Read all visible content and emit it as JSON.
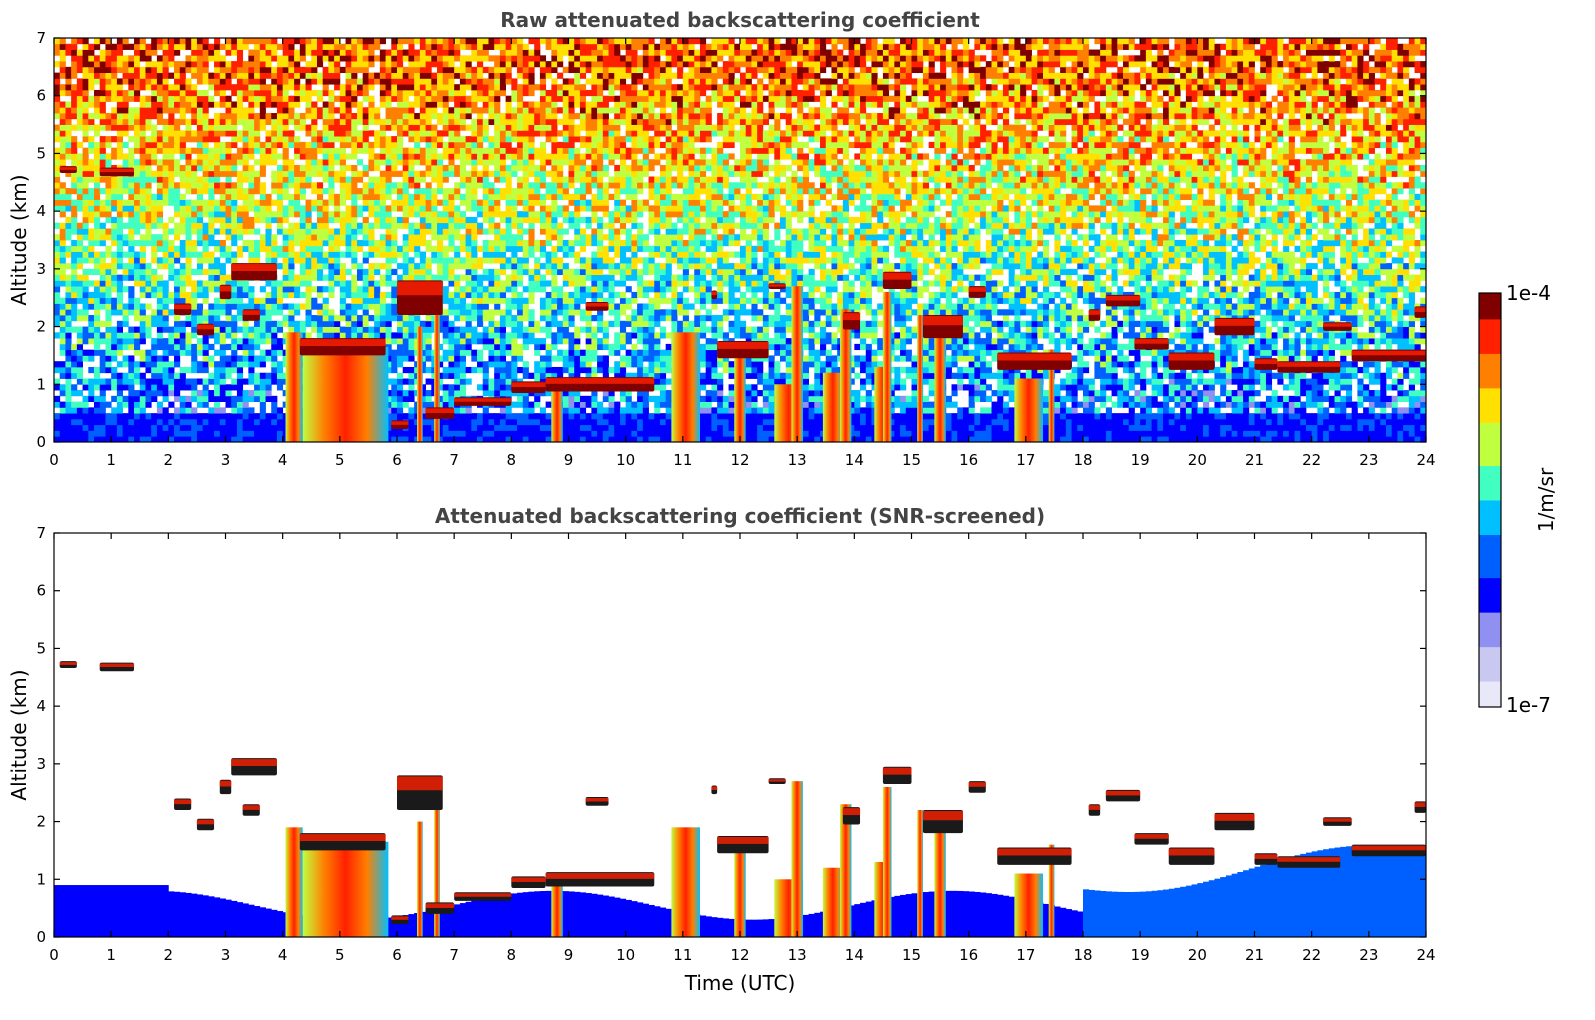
{
  "chart_data": [
    {
      "type": "heatmap",
      "title": "Raw attenuated backscattering coefficient",
      "xlabel": "",
      "ylabel": "Altitude (km)",
      "xlim": [
        0,
        24
      ],
      "ylim": [
        0,
        7
      ],
      "x_ticks": [
        "0",
        "1",
        "2",
        "3",
        "4",
        "5",
        "6",
        "7",
        "8",
        "9",
        "10",
        "11",
        "12",
        "13",
        "14",
        "15",
        "16",
        "17",
        "18",
        "19",
        "20",
        "21",
        "22",
        "23",
        "24"
      ],
      "y_ticks": [
        "0",
        "1",
        "2",
        "3",
        "4",
        "5",
        "6",
        "7"
      ],
      "screened": false,
      "cloud_layers": [
        {
          "x0": 0.1,
          "x1": 0.4,
          "alt": 4.72,
          "thick": 0.12
        },
        {
          "x0": 0.8,
          "x1": 1.4,
          "alt": 4.68,
          "thick": 0.15
        },
        {
          "x0": 2.1,
          "x1": 2.4,
          "alt": 2.3,
          "thick": 0.2
        },
        {
          "x0": 2.5,
          "x1": 2.8,
          "alt": 1.95,
          "thick": 0.2
        },
        {
          "x0": 2.9,
          "x1": 3.1,
          "alt": 2.6,
          "thick": 0.25
        },
        {
          "x0": 3.1,
          "x1": 3.9,
          "alt": 2.95,
          "thick": 0.3
        },
        {
          "x0": 3.3,
          "x1": 3.6,
          "alt": 2.2,
          "thick": 0.2
        },
        {
          "x0": 4.3,
          "x1": 5.8,
          "alt": 1.65,
          "thick": 0.3
        },
        {
          "x0": 5.9,
          "x1": 6.2,
          "alt": 0.3,
          "thick": 0.15
        },
        {
          "x0": 6.0,
          "x1": 6.8,
          "alt": 2.5,
          "thick": 0.6
        },
        {
          "x0": 6.5,
          "x1": 7.0,
          "alt": 0.5,
          "thick": 0.2
        },
        {
          "x0": 7.0,
          "x1": 8.0,
          "alt": 0.7,
          "thick": 0.15
        },
        {
          "x0": 8.0,
          "x1": 8.6,
          "alt": 0.95,
          "thick": 0.2
        },
        {
          "x0": 8.6,
          "x1": 10.5,
          "alt": 1.0,
          "thick": 0.25
        },
        {
          "x0": 9.3,
          "x1": 9.7,
          "alt": 2.35,
          "thick": 0.15
        },
        {
          "x0": 11.5,
          "x1": 11.6,
          "alt": 2.55,
          "thick": 0.15
        },
        {
          "x0": 11.6,
          "x1": 12.5,
          "alt": 1.6,
          "thick": 0.3
        },
        {
          "x0": 12.5,
          "x1": 12.8,
          "alt": 2.7,
          "thick": 0.1
        },
        {
          "x0": 13.8,
          "x1": 14.1,
          "alt": 2.1,
          "thick": 0.3
        },
        {
          "x0": 14.5,
          "x1": 15.0,
          "alt": 2.8,
          "thick": 0.3
        },
        {
          "x0": 15.2,
          "x1": 15.9,
          "alt": 2.0,
          "thick": 0.4
        },
        {
          "x0": 16.0,
          "x1": 16.3,
          "alt": 2.6,
          "thick": 0.2
        },
        {
          "x0": 16.5,
          "x1": 17.8,
          "alt": 1.4,
          "thick": 0.3
        },
        {
          "x0": 18.1,
          "x1": 18.3,
          "alt": 2.2,
          "thick": 0.2
        },
        {
          "x0": 18.4,
          "x1": 19.0,
          "alt": 2.45,
          "thick": 0.2
        },
        {
          "x0": 18.9,
          "x1": 19.5,
          "alt": 1.7,
          "thick": 0.2
        },
        {
          "x0": 19.5,
          "x1": 20.3,
          "alt": 1.4,
          "thick": 0.3
        },
        {
          "x0": 20.3,
          "x1": 21.0,
          "alt": 2.0,
          "thick": 0.3
        },
        {
          "x0": 21.0,
          "x1": 21.4,
          "alt": 1.35,
          "thick": 0.2
        },
        {
          "x0": 21.4,
          "x1": 22.5,
          "alt": 1.3,
          "thick": 0.2
        },
        {
          "x0": 22.2,
          "x1": 22.7,
          "alt": 2.0,
          "thick": 0.15
        },
        {
          "x0": 22.7,
          "x1": 24.0,
          "alt": 1.5,
          "thick": 0.2
        },
        {
          "x0": 23.8,
          "x1": 24.0,
          "alt": 2.25,
          "thick": 0.2
        }
      ],
      "precip_columns": [
        {
          "x0": 4.05,
          "x1": 4.35,
          "top": 1.9
        },
        {
          "x0": 4.35,
          "x1": 5.85,
          "top": 1.65
        },
        {
          "x0": 6.35,
          "x1": 6.45,
          "top": 2.0
        },
        {
          "x0": 6.65,
          "x1": 6.75,
          "top": 2.5
        },
        {
          "x0": 8.7,
          "x1": 8.9,
          "top": 0.9
        },
        {
          "x0": 10.8,
          "x1": 11.3,
          "top": 1.9
        },
        {
          "x0": 11.9,
          "x1": 12.1,
          "top": 1.6
        },
        {
          "x0": 12.6,
          "x1": 13.1,
          "top": 1.0
        },
        {
          "x0": 12.9,
          "x1": 13.1,
          "top": 2.7
        },
        {
          "x0": 13.45,
          "x1": 13.8,
          "top": 1.2
        },
        {
          "x0": 13.75,
          "x1": 13.95,
          "top": 2.3
        },
        {
          "x0": 14.35,
          "x1": 14.65,
          "top": 1.3
        },
        {
          "x0": 14.5,
          "x1": 14.65,
          "top": 2.6
        },
        {
          "x0": 15.1,
          "x1": 15.2,
          "top": 2.2
        },
        {
          "x0": 15.4,
          "x1": 15.6,
          "top": 2.0
        },
        {
          "x0": 16.8,
          "x1": 17.3,
          "top": 1.1
        },
        {
          "x0": 17.4,
          "x1": 17.5,
          "top": 1.6
        }
      ]
    },
    {
      "type": "heatmap",
      "title": "Attenuated backscattering coefficient (SNR-screened)",
      "xlabel": "Time (UTC)",
      "ylabel": "Altitude (km)",
      "xlim": [
        0,
        24
      ],
      "ylim": [
        0,
        7
      ],
      "x_ticks": [
        "0",
        "1",
        "2",
        "3",
        "4",
        "5",
        "6",
        "7",
        "8",
        "9",
        "10",
        "11",
        "12",
        "13",
        "14",
        "15",
        "16",
        "17",
        "18",
        "19",
        "20",
        "21",
        "22",
        "23",
        "24"
      ],
      "y_ticks": [
        "0",
        "1",
        "2",
        "3",
        "4",
        "5",
        "6",
        "7"
      ],
      "screened": true,
      "cloud_layers": "same as panel 1",
      "precip_columns": "same as panel 1"
    }
  ],
  "colorbar": {
    "label": "1/m/sr",
    "max_label": "1e-4",
    "min_label": "1e-7",
    "scale": "log",
    "colormap": "jet",
    "colors": [
      "#e8e8f8",
      "#c8c8f0",
      "#9090f0",
      "#0000ff",
      "#0060ff",
      "#00c0ff",
      "#40ffc0",
      "#c0ff40",
      "#ffe000",
      "#ff8000",
      "#ff2000",
      "#800000"
    ]
  }
}
